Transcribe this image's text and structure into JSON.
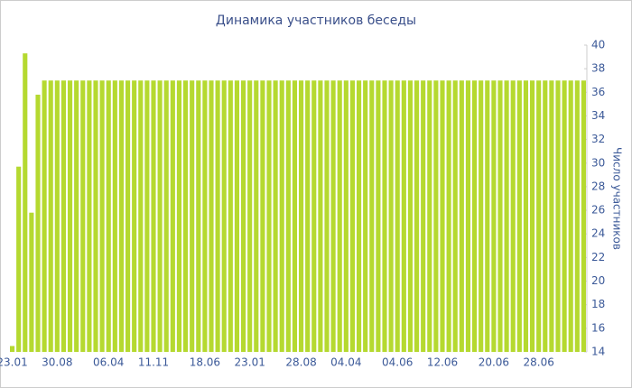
{
  "chart_data": {
    "type": "bar",
    "title": "Динамика участников беседы",
    "y_label": "Число участников",
    "categories": [
      "23.01",
      null,
      null,
      null,
      null,
      null,
      null,
      "30.08",
      null,
      null,
      null,
      null,
      null,
      null,
      null,
      "06.04",
      null,
      null,
      null,
      null,
      null,
      null,
      "11.11",
      null,
      null,
      null,
      null,
      null,
      null,
      null,
      "18.06",
      null,
      null,
      null,
      null,
      null,
      null,
      "23.01",
      null,
      null,
      null,
      null,
      null,
      null,
      null,
      "28.08",
      null,
      null,
      null,
      null,
      null,
      null,
      "04.04",
      null,
      null,
      null,
      null,
      null,
      null,
      null,
      "04.06",
      null,
      null,
      null,
      null,
      null,
      null,
      "12.06",
      null,
      null,
      null,
      null,
      null,
      null,
      null,
      "20.06",
      null,
      null,
      null,
      null,
      null,
      null,
      "28.06",
      null,
      null,
      null,
      null,
      null,
      null,
      null
    ],
    "values": [
      14.5,
      29.7,
      39.3,
      25.8,
      35.8,
      37,
      37,
      37,
      37,
      37,
      37,
      37,
      37,
      37,
      37,
      37,
      37,
      37,
      37,
      37,
      37,
      37,
      37,
      37,
      37,
      37,
      37,
      37,
      37,
      37,
      37,
      37,
      37,
      37,
      37,
      37,
      37,
      37,
      37,
      37,
      37,
      37,
      37,
      37,
      37,
      37,
      37,
      37,
      37,
      37,
      37,
      37,
      37,
      37,
      37,
      37,
      37,
      37,
      37,
      37,
      37,
      37,
      37,
      37,
      37,
      37,
      37,
      37,
      37,
      37,
      37,
      37,
      37,
      37,
      37,
      37,
      37,
      37,
      37,
      37,
      37,
      37,
      37,
      37,
      37,
      37,
      37,
      37,
      37,
      37
    ],
    "color": "#b5d930",
    "ylim": [
      14,
      40
    ],
    "yticks": [
      14,
      16,
      18,
      20,
      22,
      24,
      26,
      28,
      30,
      32,
      34,
      36,
      38,
      40
    ],
    "grid": false
  }
}
